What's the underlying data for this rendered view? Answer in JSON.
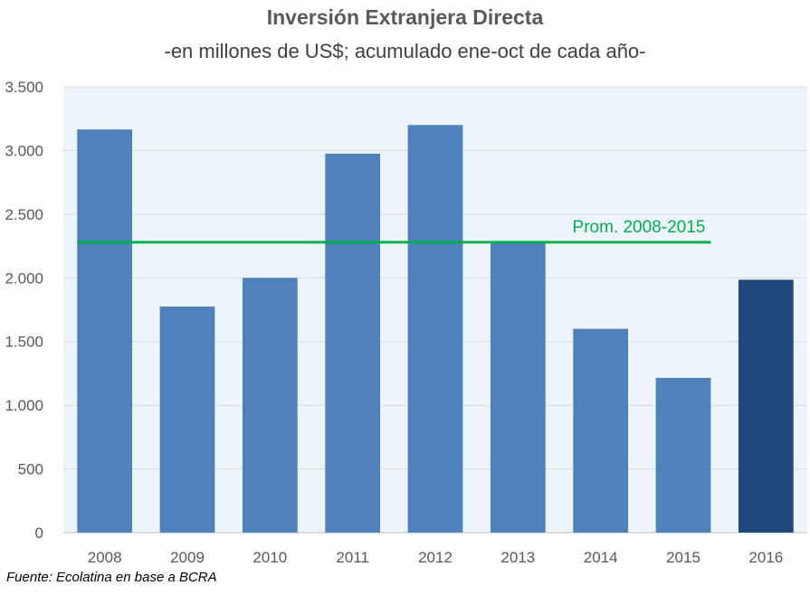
{
  "chart_data": {
    "type": "bar",
    "title": "Inversión Extranjera  Directa",
    "subtitle": "-en millones de US$; acumulado ene-oct de cada año-",
    "source": "Fuente: Ecolatina en base a BCRA",
    "categories": [
      "2008",
      "2009",
      "2010",
      "2011",
      "2012",
      "2013",
      "2014",
      "2015",
      "2016"
    ],
    "values": [
      3165,
      1775,
      2000,
      2975,
      3200,
      2285,
      1600,
      1215,
      1985
    ],
    "highlight_index": 8,
    "ylim": [
      0,
      3500
    ],
    "yticks": [
      0,
      500,
      1000,
      1500,
      2000,
      2500,
      3000,
      3500
    ],
    "ytick_labels": [
      "0",
      "500",
      "1.000",
      "1.500",
      "2.000",
      "2.500",
      "3.000",
      "3.500"
    ],
    "xlabel": "",
    "ylabel": "",
    "grid": true,
    "reference_line": {
      "label": "Prom. 2008-2015",
      "value": 2280,
      "from_category": "2008",
      "to_category": "2015"
    },
    "colors": {
      "bar": "#4F81BD",
      "highlight": "#1F497D",
      "reference": "#00B050",
      "plot_background": "#EDF5FA",
      "grid": "#D9D9D9"
    }
  }
}
